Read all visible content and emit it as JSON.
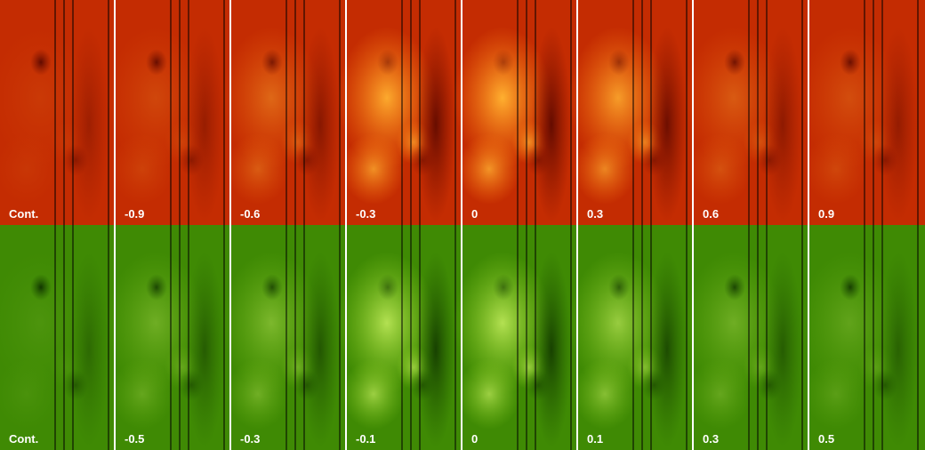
{
  "rows": [
    {
      "panels": [
        "Cont.",
        "-0.9",
        "-0.6",
        "-0.3",
        "0",
        "0.3",
        "0.6",
        "0.9"
      ]
    },
    {
      "panels": [
        "Cont.",
        "-0.5",
        "-0.3",
        "-0.1",
        "0",
        "0.1",
        "0.3",
        "0.5"
      ]
    }
  ]
}
